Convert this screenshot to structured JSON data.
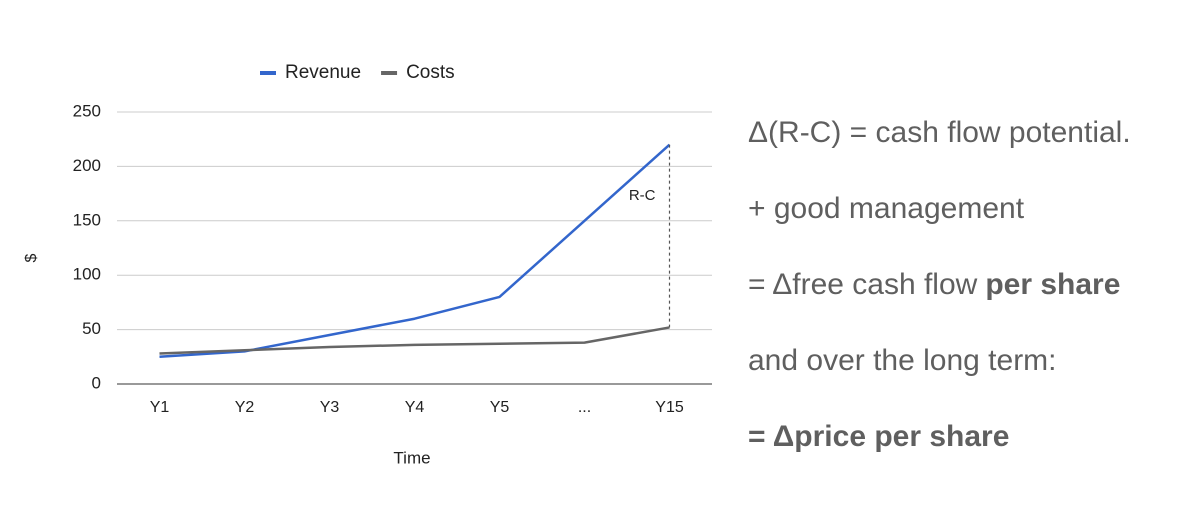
{
  "chart_data": {
    "type": "line",
    "categories": [
      "Y1",
      "Y2",
      "Y3",
      "Y4",
      "Y5",
      "...",
      "Y15"
    ],
    "series": [
      {
        "name": "Revenue",
        "color": "#3366cc",
        "values": [
          25,
          30,
          45,
          60,
          80,
          150,
          220
        ]
      },
      {
        "name": "Costs",
        "color": "#666666",
        "values": [
          28,
          31,
          34,
          36,
          37,
          38,
          52
        ]
      }
    ],
    "ylim": [
      0,
      250
    ],
    "yticks": [
      0,
      50,
      100,
      150,
      200,
      250
    ],
    "xlabel": "Time",
    "ylabel": "$",
    "grid": true,
    "legend": "top",
    "annotation": "R-C"
  },
  "notes": [
    {
      "text": "Δ(R-C) = cash flow potential."
    },
    {
      "text": "+ good management"
    },
    {
      "text": "= Δfree cash flow",
      "bold": "per share"
    },
    {
      "text": "and over the long term:"
    },
    {
      "bold": "= Δprice per share"
    }
  ]
}
